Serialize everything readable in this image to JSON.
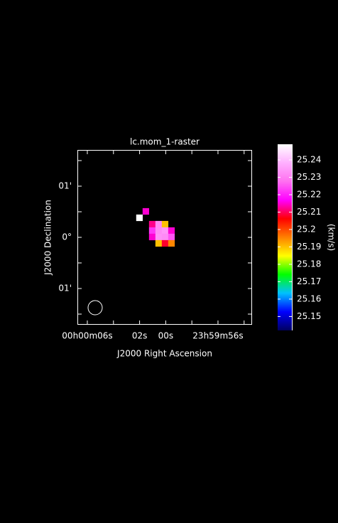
{
  "chart_data": {
    "type": "heatmap",
    "title": "lc.mom_1-raster",
    "x_label": "J2000 Right Ascension",
    "y_label": "J2000 Declination",
    "xlim": [
      6.76,
      -6.61
    ],
    "ylim": [
      -1.708,
      1.708
    ],
    "xticks": [
      {
        "value": 6,
        "label": "00h00m06s"
      },
      {
        "value": 4,
        "label": null
      },
      {
        "value": 2,
        "label": "02s"
      },
      {
        "value": 0,
        "label": "00s"
      },
      {
        "value": -2,
        "label": null
      },
      {
        "value": -4,
        "label": "23h59m56s"
      },
      {
        "value": -6,
        "label": null
      }
    ],
    "yticks": [
      {
        "value": -1.5,
        "label": null
      },
      {
        "value": -1,
        "label": "01'"
      },
      {
        "value": -0.5,
        "label": null
      },
      {
        "value": 0,
        "label": "0°"
      },
      {
        "value": 0.5,
        "label": null
      },
      {
        "value": 1,
        "label": "01'"
      },
      {
        "value": 1.5,
        "label": null
      }
    ],
    "x": [
      2.01,
      1.52,
      1.03,
      0.54,
      0.05,
      1.03,
      0.54,
      0.05,
      -0.44,
      1.03,
      0.54,
      0.05,
      -0.44,
      0.54,
      0.05,
      -0.44
    ],
    "y": [
      0.382,
      0.507,
      0.257,
      0.257,
      0.257,
      0.132,
      0.132,
      0.132,
      0.132,
      0.007,
      0.007,
      0.007,
      0.007,
      -0.118,
      -0.118,
      -0.118
    ],
    "values": [
      25.249,
      25.215,
      25.212,
      25.232,
      25.19,
      25.222,
      25.232,
      25.234,
      25.215,
      25.215,
      25.233,
      25.232,
      25.225,
      25.19,
      25.208,
      25.195
    ],
    "colorbar_label": "(km/s)",
    "clim": [
      25.142,
      25.249
    ],
    "cticks": [
      25.15,
      25.16,
      25.17,
      25.18,
      25.19,
      25.2,
      25.21,
      25.22,
      25.23,
      25.24
    ],
    "colormap": [
      "#000060",
      "#0000ff",
      "#00c0ff",
      "#00ff00",
      "#ffff00",
      "#ff8000",
      "#ff0000",
      "#ff00ff",
      "#ff70f0",
      "#ffb0ff",
      "#ffffff"
    ]
  }
}
